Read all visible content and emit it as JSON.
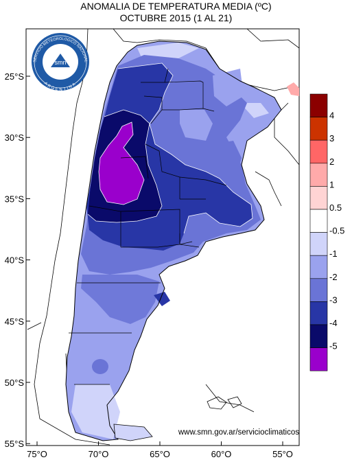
{
  "title": "ANOMALIA DE TEMPERATURA MEDIA (ºC)",
  "subtitle": "OCTUBRE 2015 (1 AL 21)",
  "credit": "www.smn.gov.ar/servicioclimaticos",
  "logo": {
    "ring_text": "SERVICIO METEOROLOGICO NACIONAL",
    "bottom_text": "ARGENTINA",
    "center_text": "smn"
  },
  "lat_labels": [
    "25°S",
    "30°S",
    "35°S",
    "40°S",
    "45°S",
    "50°S",
    "55°S"
  ],
  "lon_labels": [
    "75°O",
    "70°O",
    "65°O",
    "60°O",
    "55°O"
  ],
  "legend": {
    "labels": [
      "4",
      "3",
      "2",
      "1",
      "0.5",
      "-0.5",
      "-1",
      "-2",
      "-3",
      "-4",
      "-5"
    ],
    "colors": [
      "#8b0000",
      "#cc3300",
      "#ff6666",
      "#ffaaaa",
      "#ffd4d4",
      "#ffffff",
      "#d0d4fa",
      "#9aa2ee",
      "#6a74d6",
      "#2836a6",
      "#0a0a6a",
      "#9a00cc"
    ]
  }
}
